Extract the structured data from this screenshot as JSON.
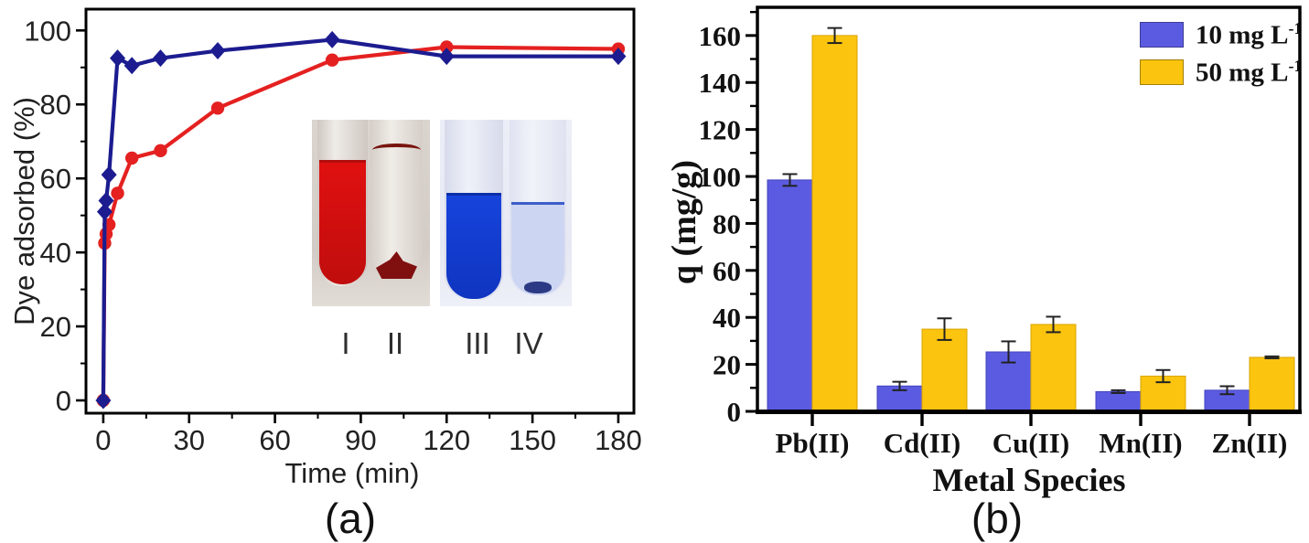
{
  "figure": {
    "panel_a": {
      "caption": "(a)"
    },
    "panel_b": {
      "caption": "(b)"
    }
  },
  "chart_data": [
    {
      "id": "chart-a",
      "type": "line",
      "title": "",
      "xlabel": "Time (min)",
      "ylabel": "Dye adsorbed (%)",
      "xlim": [
        -6,
        186
      ],
      "ylim": [
        -3.5,
        105.5
      ],
      "x_ticks": [
        0,
        30,
        60,
        90,
        120,
        150,
        180
      ],
      "x_minor_ticks": [
        15,
        45,
        75,
        105,
        135,
        165
      ],
      "y_ticks": [
        0,
        20,
        40,
        60,
        80,
        100
      ],
      "y_minor_ticks": [
        10,
        30,
        50,
        70,
        90
      ],
      "grid": false,
      "legend_position": "none",
      "series": [
        {
          "name": "red-dye-circles",
          "color": "#e42120",
          "marker": "circle",
          "x": [
            0,
            0.5,
            1,
            2,
            5,
            10,
            20,
            40,
            80,
            120,
            180
          ],
          "y": [
            0,
            42.5,
            45,
            47.5,
            56,
            65.5,
            67.5,
            79,
            92,
            95.5,
            95
          ]
        },
        {
          "name": "blue-dye-diamonds",
          "color": "#1c1c90",
          "marker": "diamond",
          "x": [
            0,
            0.5,
            1,
            2,
            5,
            10,
            20,
            40,
            80,
            120,
            180
          ],
          "y": [
            0,
            51,
            54,
            61,
            92.5,
            90.5,
            92.5,
            94.5,
            97.5,
            93,
            93
          ]
        }
      ],
      "inset": {
        "tube_labels": [
          "I",
          "II",
          "III",
          "IV"
        ],
        "red_liquid_color": "#e01010",
        "red_sediment_color": "#801010",
        "blue_liquid_color": "#1743dc",
        "pale_blue_color": "#ccd5f1",
        "blue_sediment_color": "#2c3a85"
      }
    },
    {
      "id": "chart-b",
      "type": "bar",
      "title": "",
      "xlabel": "Metal Species",
      "ylabel": "q (mg/g)",
      "ylim": [
        0,
        172
      ],
      "y_ticks": [
        0,
        20,
        40,
        60,
        80,
        100,
        120,
        140,
        160
      ],
      "y_minor_ticks": [
        10,
        30,
        50,
        70,
        90,
        110,
        130,
        150,
        170
      ],
      "grid": false,
      "legend_position": "top-right",
      "categories": [
        "Pb(II)",
        "Cd(II)",
        "Cu(II)",
        "Mn(II)",
        "Zn(II)"
      ],
      "series": [
        {
          "name": "10 mg L-1",
          "legend": {
            "base": "10 mg L",
            "exp": "-1"
          },
          "color": "#5b5be2",
          "edge": "#4343bb",
          "values": [
            98.5,
            10.8,
            25.3,
            8.4,
            9.0
          ],
          "errors": [
            2.5,
            1.8,
            4.5,
            0.6,
            1.7
          ]
        },
        {
          "name": "50 mg L-1",
          "legend": {
            "base": "50 mg L",
            "exp": "-1"
          },
          "color": "#fbc40f",
          "edge": "#d9a504",
          "values": [
            160,
            35,
            37,
            15,
            23
          ],
          "errors": [
            3.2,
            4.6,
            3.3,
            2.6,
            0.4
          ]
        }
      ]
    }
  ]
}
